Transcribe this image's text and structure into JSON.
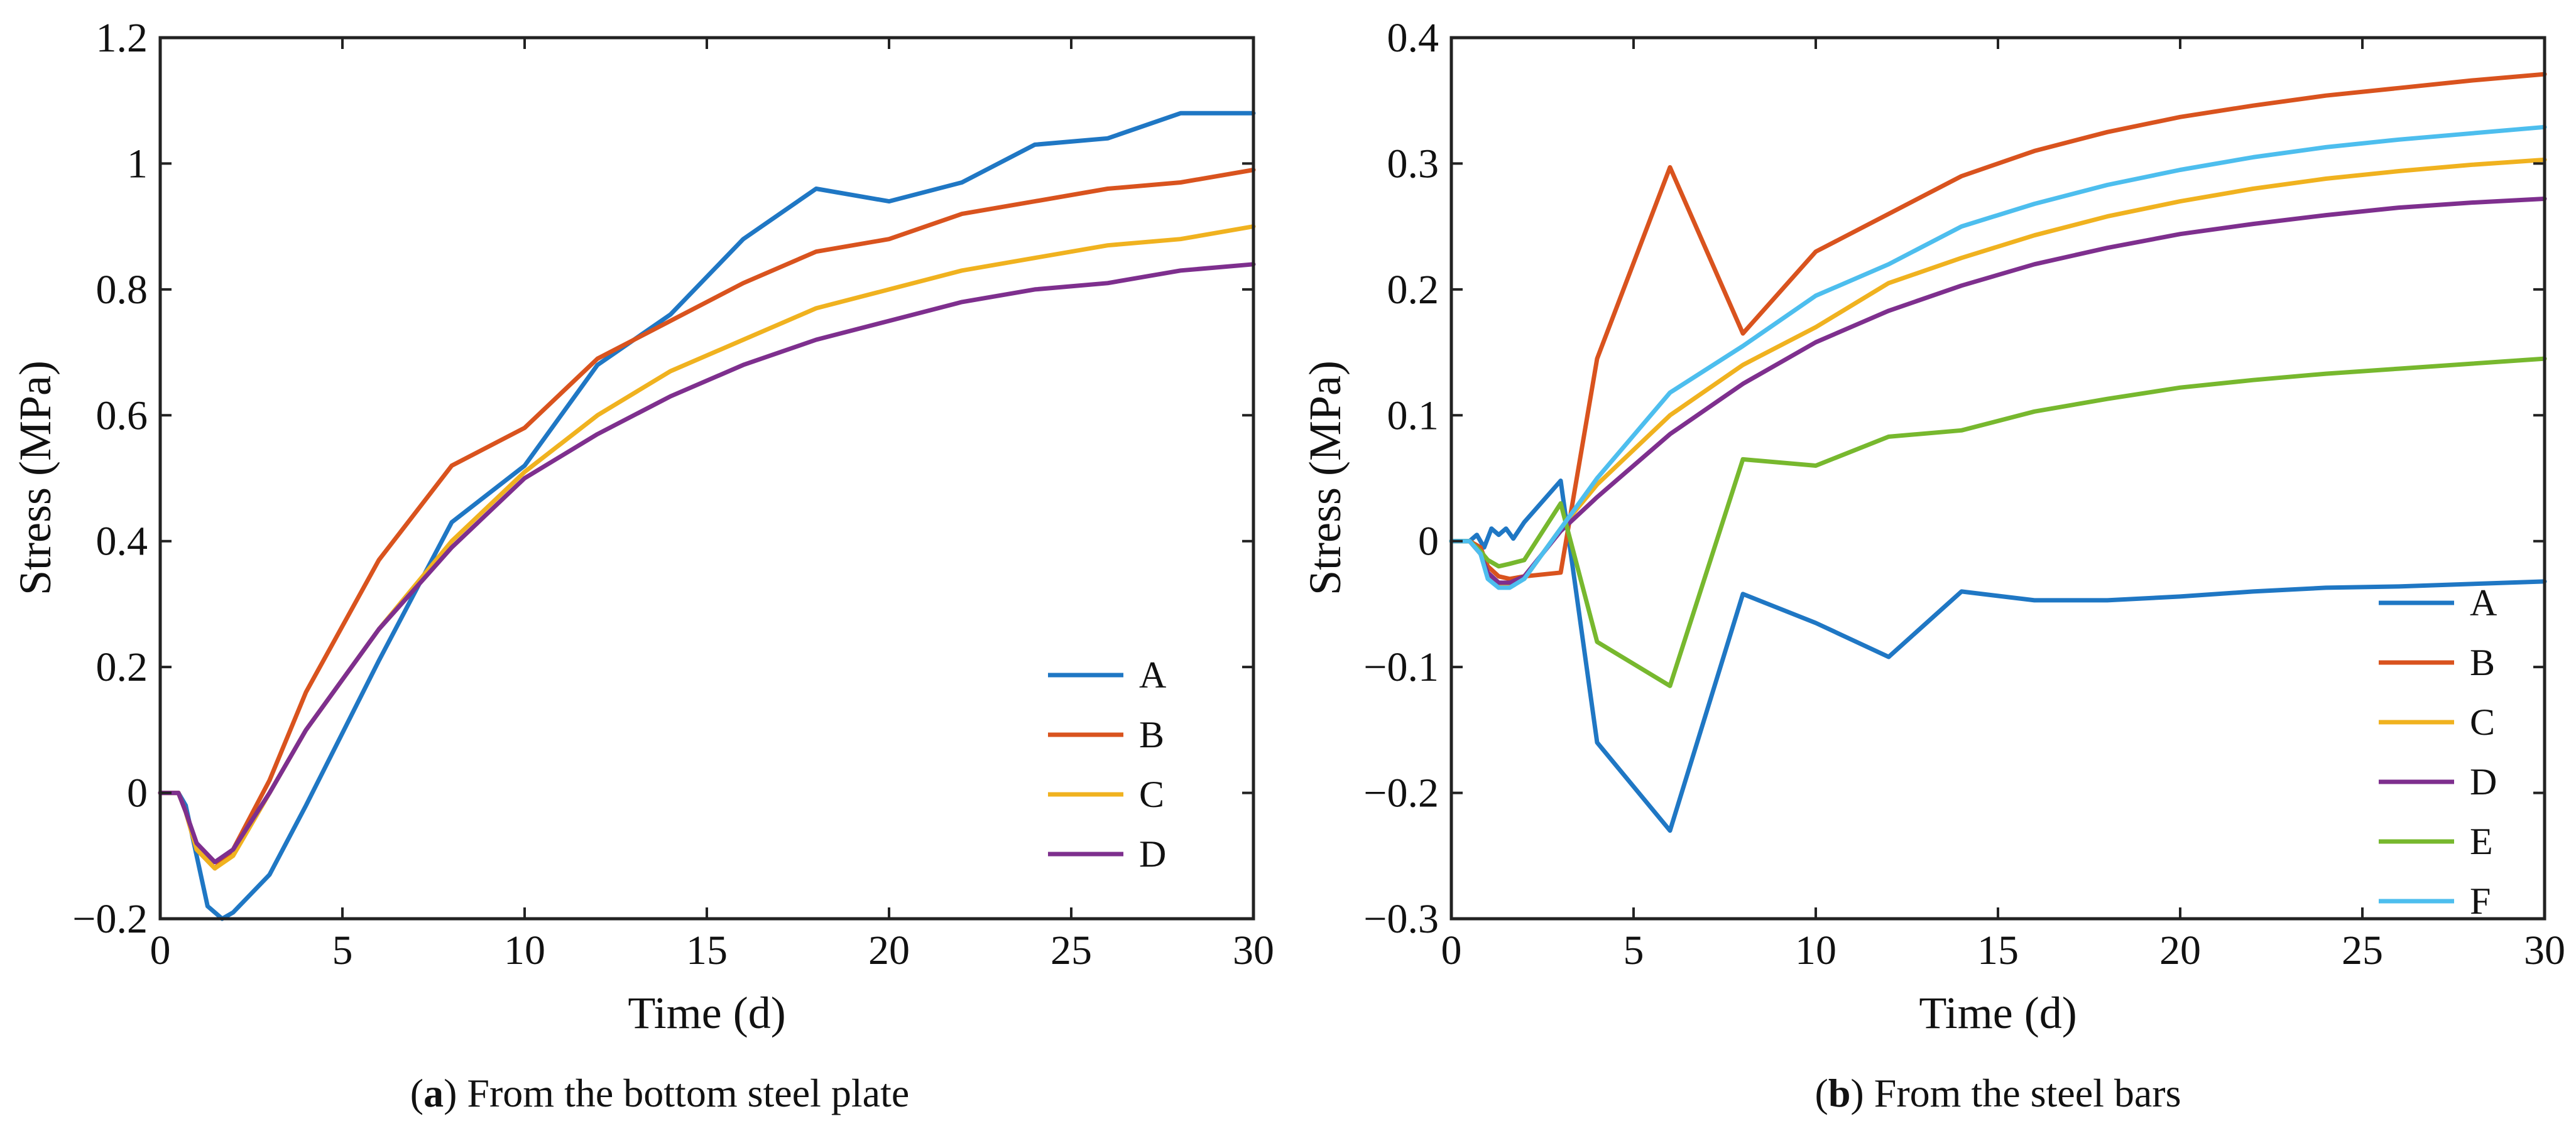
{
  "chart_data": [
    {
      "type": "line",
      "caption_label": "a",
      "caption_text": "From the bottom steel plate",
      "title": "",
      "xlabel": "Time (d)",
      "ylabel": "Stress (MPa)",
      "xlim": [
        0,
        30
      ],
      "ylim": [
        -0.2,
        1.2
      ],
      "x_ticks": [
        0,
        5,
        10,
        15,
        20,
        25,
        30
      ],
      "x_tick_labels": [
        "0",
        "5",
        "10",
        "15",
        "20",
        "25",
        "30"
      ],
      "y_ticks": [
        -0.2,
        0,
        0.2,
        0.4,
        0.6,
        0.8,
        1,
        1.2
      ],
      "y_tick_labels": [
        "−0.2",
        "0",
        "0.2",
        "0.4",
        "0.6",
        "0.8",
        "1",
        "1.2"
      ],
      "grid": false,
      "legend_position": "bottom-right",
      "series": [
        {
          "name": "A",
          "color": "#1f77c4",
          "x": [
            0,
            0.5,
            0.7,
            1,
            1.3,
            1.7,
            2,
            3,
            4,
            6,
            8,
            10,
            12,
            14,
            16,
            18,
            20,
            22,
            24,
            26,
            28,
            30
          ],
          "y": [
            0,
            0,
            -0.02,
            -0.1,
            -0.18,
            -0.2,
            -0.19,
            -0.13,
            -0.02,
            0.21,
            0.43,
            0.52,
            0.68,
            0.76,
            0.88,
            0.96,
            0.94,
            0.97,
            1.03,
            1.04,
            1.08,
            1.08
          ]
        },
        {
          "name": "B",
          "color": "#d9531e",
          "x": [
            0,
            0.5,
            0.7,
            1,
            1.5,
            2,
            3,
            4,
            6,
            8,
            10,
            12,
            14,
            16,
            18,
            20,
            22,
            24,
            26,
            28,
            30
          ],
          "y": [
            0,
            0,
            -0.03,
            -0.09,
            -0.12,
            -0.09,
            0.02,
            0.16,
            0.37,
            0.52,
            0.58,
            0.69,
            0.75,
            0.81,
            0.86,
            0.88,
            0.92,
            0.94,
            0.96,
            0.97,
            0.99
          ]
        },
        {
          "name": "C",
          "color": "#f0b21f",
          "x": [
            0,
            0.5,
            0.7,
            1,
            1.5,
            2,
            3,
            4,
            6,
            8,
            10,
            12,
            14,
            16,
            18,
            20,
            22,
            24,
            26,
            28,
            30
          ],
          "y": [
            0,
            0,
            -0.03,
            -0.09,
            -0.12,
            -0.1,
            0,
            0.1,
            0.26,
            0.4,
            0.51,
            0.6,
            0.67,
            0.72,
            0.77,
            0.8,
            0.83,
            0.85,
            0.87,
            0.88,
            0.9
          ]
        },
        {
          "name": "D",
          "color": "#7e2f8e",
          "x": [
            0,
            0.5,
            0.7,
            1,
            1.5,
            2,
            3,
            4,
            6,
            8,
            10,
            12,
            14,
            16,
            18,
            20,
            22,
            24,
            26,
            28,
            30
          ],
          "y": [
            0,
            0,
            -0.03,
            -0.08,
            -0.11,
            -0.09,
            0,
            0.1,
            0.26,
            0.39,
            0.5,
            0.57,
            0.63,
            0.68,
            0.72,
            0.75,
            0.78,
            0.8,
            0.81,
            0.83,
            0.84
          ]
        }
      ]
    },
    {
      "type": "line",
      "caption_label": "b",
      "caption_text": "From the steel bars",
      "title": "",
      "xlabel": "Time (d)",
      "ylabel": "Stress (MPa)",
      "xlim": [
        0,
        30
      ],
      "ylim": [
        -0.3,
        0.4
      ],
      "x_ticks": [
        0,
        5,
        10,
        15,
        20,
        25,
        30
      ],
      "x_tick_labels": [
        "0",
        "5",
        "10",
        "15",
        "20",
        "25",
        "30"
      ],
      "y_ticks": [
        -0.3,
        -0.2,
        -0.1,
        0,
        0.1,
        0.2,
        0.3,
        0.4
      ],
      "y_tick_labels": [
        "−0.3",
        "−0.2",
        "−0.1",
        "0",
        "0.1",
        "0.2",
        "0.3",
        "0.4"
      ],
      "grid": false,
      "legend_position": "bottom-right",
      "series": [
        {
          "name": "A",
          "color": "#1f77c4",
          "x": [
            0,
            0.5,
            0.7,
            0.9,
            1.1,
            1.3,
            1.5,
            1.7,
            2,
            3,
            4,
            6,
            8,
            10,
            12,
            14,
            16,
            18,
            20,
            22,
            24,
            26,
            28,
            30
          ],
          "y": [
            0,
            0,
            0.005,
            -0.005,
            0.01,
            0.005,
            0.01,
            0.002,
            0.015,
            0.048,
            -0.16,
            -0.23,
            -0.042,
            -0.065,
            -0.092,
            -0.04,
            -0.047,
            -0.047,
            -0.044,
            -0.04,
            -0.037,
            -0.036,
            -0.034,
            -0.032
          ]
        },
        {
          "name": "B",
          "color": "#d9531e",
          "x": [
            0,
            0.5,
            0.8,
            1,
            1.3,
            1.6,
            2,
            3,
            4,
            6,
            8,
            10,
            12,
            14,
            16,
            18,
            20,
            22,
            24,
            26,
            28,
            30
          ],
          "y": [
            0,
            0,
            -0.005,
            -0.02,
            -0.028,
            -0.03,
            -0.028,
            -0.025,
            0.145,
            0.297,
            0.165,
            0.23,
            0.26,
            0.29,
            0.31,
            0.325,
            0.337,
            0.346,
            0.354,
            0.36,
            0.366,
            0.371
          ]
        },
        {
          "name": "C",
          "color": "#f0b21f",
          "x": [
            0,
            0.5,
            0.8,
            1,
            1.3,
            1.6,
            2,
            3,
            4,
            6,
            8,
            10,
            12,
            14,
            16,
            18,
            20,
            22,
            24,
            26,
            28,
            30
          ],
          "y": [
            0,
            0,
            -0.01,
            -0.025,
            -0.035,
            -0.035,
            -0.03,
            0.01,
            0.045,
            0.1,
            0.14,
            0.17,
            0.205,
            0.225,
            0.243,
            0.258,
            0.27,
            0.28,
            0.288,
            0.294,
            0.299,
            0.303
          ]
        },
        {
          "name": "D",
          "color": "#7e2f8e",
          "x": [
            0,
            0.5,
            0.8,
            1,
            1.3,
            1.6,
            2,
            3,
            4,
            6,
            8,
            10,
            12,
            14,
            16,
            18,
            20,
            22,
            24,
            26,
            28,
            30
          ],
          "y": [
            0,
            0,
            -0.01,
            -0.025,
            -0.033,
            -0.033,
            -0.028,
            0.008,
            0.035,
            0.085,
            0.125,
            0.158,
            0.183,
            0.203,
            0.22,
            0.233,
            0.244,
            0.252,
            0.259,
            0.265,
            0.269,
            0.272
          ]
        },
        {
          "name": "E",
          "color": "#77b82e",
          "x": [
            0,
            0.5,
            0.8,
            1,
            1.3,
            1.6,
            2,
            3,
            4,
            6,
            8,
            10,
            12,
            14,
            16,
            18,
            20,
            22,
            24,
            26,
            28,
            30
          ],
          "y": [
            0,
            0,
            -0.008,
            -0.015,
            -0.02,
            -0.018,
            -0.015,
            0.03,
            -0.08,
            -0.115,
            0.065,
            0.06,
            0.083,
            0.088,
            0.103,
            0.113,
            0.122,
            0.128,
            0.133,
            0.137,
            0.141,
            0.145
          ]
        },
        {
          "name": "F",
          "color": "#4dbeee",
          "x": [
            0,
            0.5,
            0.8,
            1,
            1.3,
            1.6,
            2,
            3,
            4,
            6,
            8,
            10,
            12,
            14,
            16,
            18,
            20,
            22,
            24,
            26,
            28,
            30
          ],
          "y": [
            0,
            0,
            -0.01,
            -0.03,
            -0.037,
            -0.037,
            -0.03,
            0.01,
            0.05,
            0.118,
            0.155,
            0.195,
            0.22,
            0.25,
            0.268,
            0.283,
            0.295,
            0.305,
            0.313,
            0.319,
            0.324,
            0.329
          ]
        }
      ]
    }
  ]
}
